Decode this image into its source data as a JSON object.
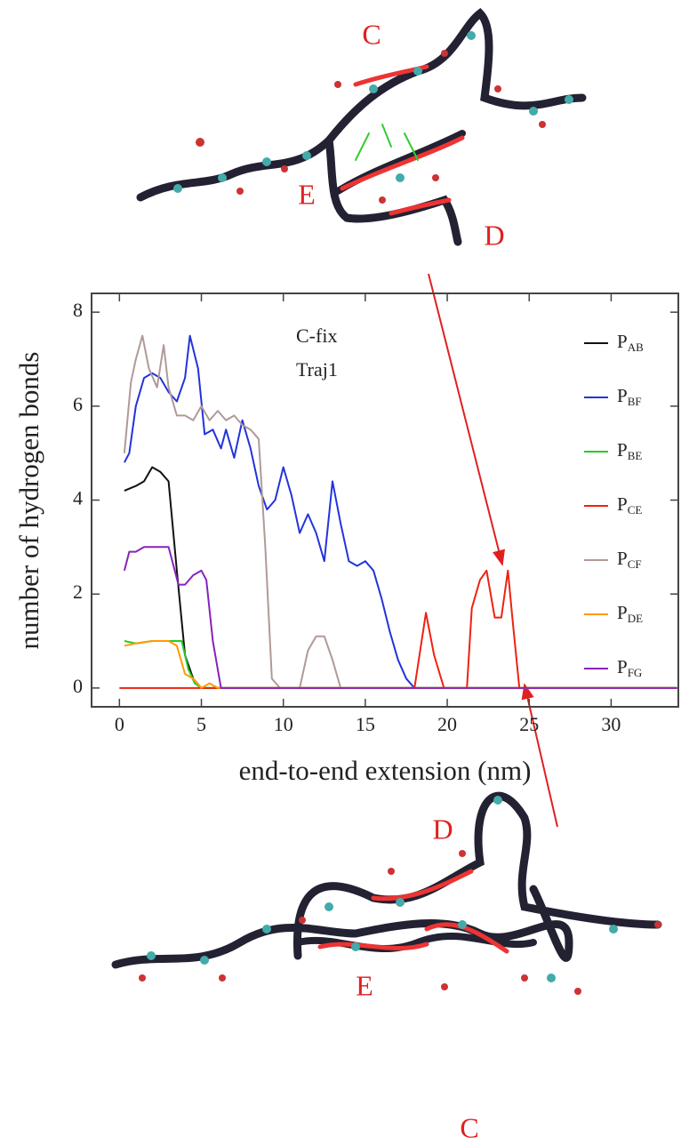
{
  "chart_data": {
    "type": "line",
    "xlabel": "end-to-end extension (nm)",
    "ylabel": "number of hydrogen bonds",
    "annotations": [
      "C-fix",
      "Traj1"
    ],
    "molecule_labels": [
      "C",
      "E",
      "D",
      "D",
      "E",
      "C"
    ],
    "xlim": [
      -1.7,
      34.1
    ],
    "ylim": [
      -0.4,
      8.4
    ],
    "xticks": [
      0,
      5,
      10,
      15,
      20,
      25,
      30
    ],
    "yticks": [
      0,
      2,
      4,
      6,
      8
    ],
    "legend": "right",
    "series": [
      {
        "name": "PAB",
        "color": "#111111",
        "x": [
          0.3,
          1,
          1.5,
          2,
          2.5,
          3,
          3.5,
          4,
          4.5,
          5,
          34
        ],
        "values": [
          4.2,
          4.3,
          4.4,
          4.7,
          4.6,
          4.4,
          2.5,
          0.7,
          0.2,
          0,
          0
        ]
      },
      {
        "name": "PBF",
        "color": "#2233dd",
        "x": [
          0.3,
          0.6,
          1,
          1.5,
          2,
          2.5,
          3,
          3.5,
          4,
          4.3,
          4.8,
          5.2,
          5.7,
          6.2,
          6.5,
          7,
          7.5,
          8,
          8.5,
          9,
          9.5,
          10,
          10.5,
          11,
          11.5,
          12,
          12.5,
          13,
          13.5,
          14,
          14.5,
          15,
          15.5,
          16,
          16.5,
          17,
          17.5,
          18,
          34
        ],
        "values": [
          4.8,
          5.0,
          6.0,
          6.6,
          6.7,
          6.6,
          6.3,
          6.1,
          6.6,
          7.5,
          6.8,
          5.4,
          5.5,
          5.1,
          5.5,
          4.9,
          5.7,
          5.1,
          4.3,
          3.8,
          4.0,
          4.7,
          4.1,
          3.3,
          3.7,
          3.3,
          2.7,
          4.4,
          3.5,
          2.7,
          2.6,
          2.7,
          2.5,
          1.9,
          1.2,
          0.6,
          0.2,
          0,
          0
        ]
      },
      {
        "name": "PBE",
        "color": "#22cc22",
        "x": [
          0.3,
          1,
          2,
          3,
          3.8,
          4.2,
          4.6,
          5,
          34
        ],
        "values": [
          1.0,
          0.95,
          1.0,
          1.0,
          1.0,
          0.4,
          0.1,
          0,
          0
        ]
      },
      {
        "name": "PCE",
        "color": "#ee2211",
        "x": [
          0,
          18,
          18.7,
          19.2,
          19.8,
          21.2,
          21.5,
          22,
          22.4,
          22.9,
          23.3,
          23.7,
          24,
          24.4,
          34
        ],
        "values": [
          0,
          0,
          1.6,
          0.7,
          0,
          0,
          1.7,
          2.3,
          2.5,
          1.5,
          1.5,
          2.5,
          1.4,
          0,
          0
        ]
      },
      {
        "name": "PCF",
        "color": "#b09a98",
        "x": [
          0.3,
          0.7,
          1,
          1.4,
          1.8,
          2.3,
          2.7,
          3,
          3.5,
          4,
          4.5,
          5,
          5.5,
          6,
          6.5,
          7,
          7.5,
          8,
          8.5,
          8.9,
          9.3,
          9.8,
          11,
          11.5,
          12,
          12.5,
          13,
          13.5,
          34
        ],
        "values": [
          5.0,
          6.5,
          7.0,
          7.5,
          6.8,
          6.4,
          7.3,
          6.4,
          5.8,
          5.8,
          5.7,
          6.0,
          5.7,
          5.9,
          5.7,
          5.8,
          5.6,
          5.5,
          5.3,
          3.0,
          0.2,
          0,
          0,
          0.8,
          1.1,
          1.1,
          0.6,
          0,
          0
        ]
      },
      {
        "name": "PDE",
        "color": "#ff9900",
        "x": [
          0.3,
          1,
          2,
          3,
          3.5,
          4,
          4.5,
          5,
          5.5,
          6,
          34
        ],
        "values": [
          0.9,
          0.95,
          1.0,
          1.0,
          0.9,
          0.3,
          0.2,
          0,
          0.1,
          0,
          0
        ]
      },
      {
        "name": "PFG",
        "color": "#8822bb",
        "x": [
          0.3,
          0.6,
          1,
          1.5,
          2,
          2.5,
          3,
          3.3,
          3.6,
          4,
          4.5,
          5,
          5.3,
          5.7,
          6.2,
          34
        ],
        "values": [
          2.5,
          2.9,
          2.9,
          3.0,
          3.0,
          3.0,
          3.0,
          2.6,
          2.2,
          2.2,
          2.4,
          2.5,
          2.3,
          1.0,
          0,
          0
        ]
      }
    ]
  }
}
